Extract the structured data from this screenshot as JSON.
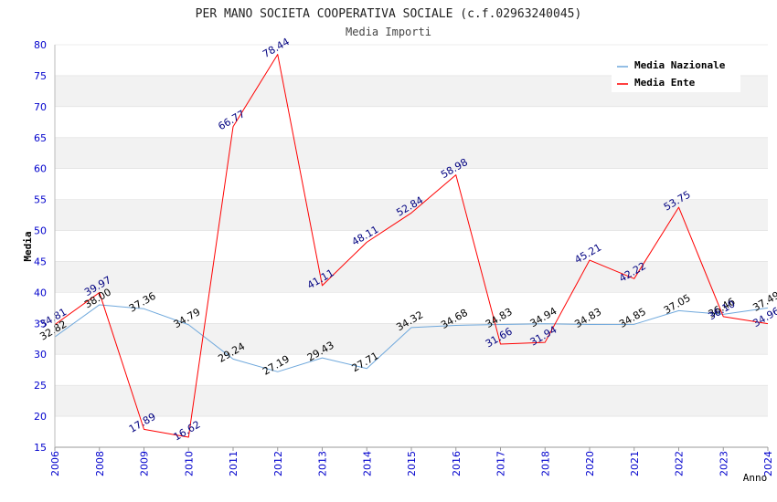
{
  "chart_data": {
    "type": "line",
    "title": "PER MANO SOCIETA COOPERATIVA SOCIALE (c.f.02963240045)",
    "subtitle": "Media Importi",
    "xlabel": "Anno",
    "ylabel": "Media",
    "ylim": [
      15,
      80
    ],
    "ytick_step": 5,
    "yticks": [
      "15",
      "20",
      "25",
      "30",
      "35",
      "40",
      "45",
      "50",
      "55",
      "60",
      "65",
      "70",
      "75",
      "80"
    ],
    "categories": [
      "2006",
      "2008",
      "2009",
      "2010",
      "2011",
      "2012",
      "2013",
      "2014",
      "2015",
      "2016",
      "2017",
      "2018",
      "2020",
      "2021",
      "2022",
      "2023",
      "2024"
    ],
    "legend_position": "top-right",
    "series": [
      {
        "name": "Media Nazionale",
        "color": "#6fa8dc",
        "label_color": "#000000",
        "values": [
          32.82,
          38.0,
          37.36,
          34.79,
          29.24,
          27.19,
          29.43,
          27.71,
          34.32,
          34.68,
          34.83,
          34.94,
          34.83,
          34.85,
          37.05,
          36.46,
          37.49
        ],
        "labels": [
          "32.82",
          "38.00",
          "37.36",
          "34.79",
          "29.24",
          "27.19",
          "29.43",
          "27.71",
          "34.32",
          "34.68",
          "34.83",
          "34.94",
          "34.83",
          "34.85",
          "37.05",
          "36.46",
          "37.49"
        ]
      },
      {
        "name": "Media Ente",
        "color": "#ff0000",
        "label_color": "#000080",
        "values": [
          34.81,
          39.97,
          17.89,
          16.62,
          66.77,
          78.44,
          41.11,
          48.11,
          52.84,
          58.98,
          31.66,
          31.94,
          45.21,
          42.22,
          53.75,
          36.1,
          34.96
        ],
        "labels": [
          "34.81",
          "39.97",
          "17.89",
          "16.62",
          "66.77",
          "78.44",
          "41.11",
          "48.11",
          "52.84",
          "58.98",
          "31.66",
          "31.94",
          "45.21",
          "42.22",
          "53.75",
          "36.10",
          "34.96"
        ]
      }
    ]
  },
  "colors": {
    "axis_tick_text": "#0000cc",
    "title_text": "#222222",
    "band_fill": "#f2f2f2",
    "grid_line": "#dddddd"
  }
}
